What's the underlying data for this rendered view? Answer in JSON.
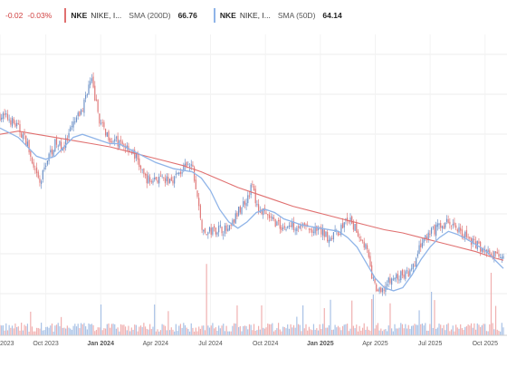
{
  "legend": {
    "price_change": "-0.02",
    "price_change_pct": "-0.03%",
    "items": [
      {
        "symbol": "NKE",
        "name": "NIKE, I...",
        "indicator": "SMA (200D)",
        "value": "66.76",
        "color": "#e07070"
      },
      {
        "symbol": "NKE",
        "name": "NIKE, I...",
        "indicator": "SMA (50D)",
        "value": "64.14",
        "color": "#8fb4e8"
      }
    ]
  },
  "colors": {
    "up": "#6e92c8",
    "down": "#e07a7a",
    "sma200": "#e07070",
    "sma50": "#8fb4e8",
    "grid": "#ececec",
    "volume_up": "#a9c2e6",
    "volume_down": "#f0b0b0"
  },
  "chart_data": {
    "type": "line",
    "x_tick_labels": [
      "2023",
      "Oct 2023",
      "Jan 2024",
      "Apr 2024",
      "Jul 2024",
      "Oct 2024",
      "Jan 2025",
      "Apr 2025",
      "Jul 2025",
      "Oct 2025"
    ],
    "x_tick_months": [
      9.5,
      12,
      15,
      18,
      21,
      24,
      27,
      30,
      33,
      36
    ],
    "x_range_months": [
      9.5,
      37
    ],
    "grid": true,
    "series": [
      {
        "name": "NKE",
        "role": "price",
        "points": [
          [
            9.5,
            113
          ],
          [
            10,
            112
          ],
          [
            10.5,
            109
          ],
          [
            11,
            104
          ],
          [
            11.3,
            96
          ],
          [
            11.7,
            91
          ],
          [
            12,
            98
          ],
          [
            12.5,
            104
          ],
          [
            13,
            103
          ],
          [
            13.5,
            110
          ],
          [
            14,
            115
          ],
          [
            14.3,
            122
          ],
          [
            14.5,
            124
          ],
          [
            15,
            110
          ],
          [
            15.5,
            106
          ],
          [
            16,
            104
          ],
          [
            16.5,
            103
          ],
          [
            17,
            99
          ],
          [
            17.3,
            94
          ],
          [
            17.7,
            92
          ],
          [
            18,
            93
          ],
          [
            18.5,
            92
          ],
          [
            19,
            93
          ],
          [
            19.5,
            96
          ],
          [
            20,
            97
          ],
          [
            20.3,
            86
          ],
          [
            20.6,
            75
          ],
          [
            21,
            76
          ],
          [
            21.5,
            77
          ],
          [
            22,
            76
          ],
          [
            22.5,
            82
          ],
          [
            23,
            87
          ],
          [
            23.3,
            91
          ],
          [
            23.5,
            84
          ],
          [
            24,
            81
          ],
          [
            24.5,
            79
          ],
          [
            25,
            77
          ],
          [
            25.5,
            78
          ],
          [
            26,
            78
          ],
          [
            26.5,
            76
          ],
          [
            27,
            76
          ],
          [
            27.5,
            74
          ],
          [
            28,
            76
          ],
          [
            28.5,
            80
          ],
          [
            29,
            76
          ],
          [
            29.5,
            71
          ],
          [
            29.8,
            62
          ],
          [
            30,
            58
          ],
          [
            30.3,
            56
          ],
          [
            30.6,
            59
          ],
          [
            31,
            61
          ],
          [
            31.5,
            62
          ],
          [
            32,
            63
          ],
          [
            32.5,
            72
          ],
          [
            33,
            75
          ],
          [
            33.3,
            77
          ],
          [
            33.7,
            78
          ],
          [
            34,
            79
          ],
          [
            34.5,
            77
          ],
          [
            35,
            74
          ],
          [
            35.5,
            72
          ],
          [
            36,
            70
          ],
          [
            36.3,
            68
          ],
          [
            37,
            69
          ]
        ]
      },
      {
        "name": "SMA (200D)",
        "role": "sma200",
        "points": [
          [
            9.5,
            107
          ],
          [
            10.5,
            108
          ],
          [
            11.5,
            107
          ],
          [
            12.5,
            106
          ],
          [
            13.5,
            105
          ],
          [
            14.5,
            104
          ],
          [
            15.5,
            103
          ],
          [
            16.5,
            101.5
          ],
          [
            17.5,
            100
          ],
          [
            18.5,
            98.5
          ],
          [
            19.5,
            97
          ],
          [
            20.5,
            95
          ],
          [
            21.5,
            92.5
          ],
          [
            22.5,
            90
          ],
          [
            23.5,
            88
          ],
          [
            24.5,
            86
          ],
          [
            25.5,
            84
          ],
          [
            26.5,
            82.5
          ],
          [
            27.5,
            81
          ],
          [
            28.5,
            79.5
          ],
          [
            29.5,
            78
          ],
          [
            30.5,
            76.5
          ],
          [
            31.5,
            75.5
          ],
          [
            32.5,
            74
          ],
          [
            33.5,
            72.5
          ],
          [
            34.5,
            71
          ],
          [
            35.5,
            69.5
          ],
          [
            36.5,
            67.5
          ],
          [
            37,
            66.76
          ]
        ]
      },
      {
        "name": "SMA (50D)",
        "role": "sma50",
        "points": [
          [
            9.5,
            109
          ],
          [
            10.5,
            106
          ],
          [
            11.5,
            100
          ],
          [
            12,
            99
          ],
          [
            12.5,
            100
          ],
          [
            13,
            103
          ],
          [
            13.5,
            106
          ],
          [
            14,
            107
          ],
          [
            14.5,
            106
          ],
          [
            15,
            105
          ],
          [
            15.5,
            104
          ],
          [
            16,
            104
          ],
          [
            17,
            101
          ],
          [
            18,
            98
          ],
          [
            19,
            96
          ],
          [
            20,
            95
          ],
          [
            20.5,
            93
          ],
          [
            21,
            89
          ],
          [
            21.5,
            83
          ],
          [
            22,
            79
          ],
          [
            22.5,
            77
          ],
          [
            23,
            79
          ],
          [
            23.5,
            82
          ],
          [
            24,
            83
          ],
          [
            24.5,
            82
          ],
          [
            25,
            80
          ],
          [
            25.5,
            79
          ],
          [
            26,
            78
          ],
          [
            27,
            77
          ],
          [
            28,
            76
          ],
          [
            28.5,
            74
          ],
          [
            29,
            71
          ],
          [
            29.5,
            66
          ],
          [
            30,
            61
          ],
          [
            30.5,
            58
          ],
          [
            31,
            57
          ],
          [
            31.5,
            58
          ],
          [
            32,
            62
          ],
          [
            32.5,
            67
          ],
          [
            33,
            71
          ],
          [
            33.5,
            74
          ],
          [
            34,
            76
          ],
          [
            34.5,
            75
          ],
          [
            35,
            73.5
          ],
          [
            36,
            70
          ],
          [
            37,
            64.14
          ]
        ]
      }
    ],
    "volume_spikes": [
      [
        20.8,
        0.9
      ],
      [
        23.8,
        0.35
      ],
      [
        27.2,
        0.3
      ],
      [
        29.9,
        0.55
      ],
      [
        33.1,
        0.6
      ],
      [
        36.3,
        0.95
      ]
    ]
  }
}
